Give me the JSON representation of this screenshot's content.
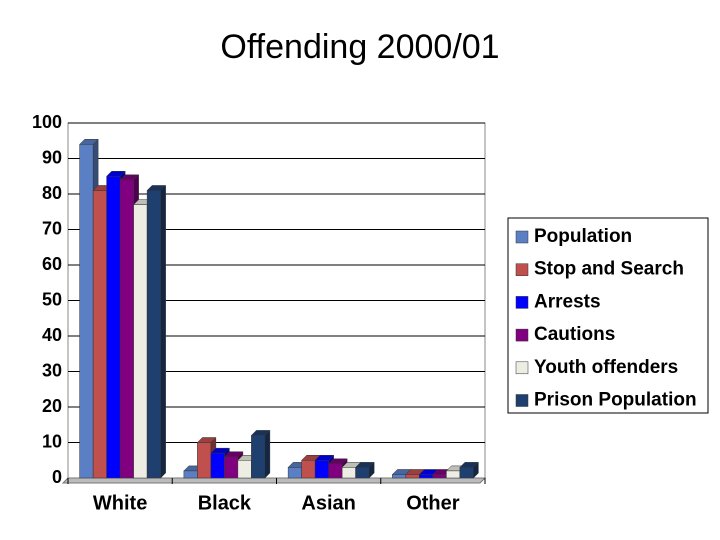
{
  "chart_data": {
    "type": "bar",
    "title": "Offending 2000/01",
    "categories": [
      "White",
      "Black",
      "Asian",
      "Other"
    ],
    "series": [
      {
        "name": "Population",
        "color": "#5a7fc4",
        "values": [
          94,
          2,
          3,
          1
        ]
      },
      {
        "name": "Stop and Search",
        "color": "#c0504d",
        "values": [
          81,
          10,
          5,
          1
        ]
      },
      {
        "name": "Arrests",
        "color": "#0000ff",
        "values": [
          85,
          7,
          5,
          1
        ]
      },
      {
        "name": "Cautions",
        "color": "#800080",
        "values": [
          84,
          6,
          4,
          1
        ]
      },
      {
        "name": "Youth offenders",
        "color": "#ededE4",
        "values": [
          77,
          5,
          3,
          2
        ]
      },
      {
        "name": "Prison Population",
        "color": "#1f3f6f",
        "values": [
          81,
          12,
          3,
          3
        ]
      }
    ],
    "ylim": [
      0,
      100
    ],
    "yticks": [
      0,
      10,
      20,
      30,
      40,
      50,
      60,
      70,
      80,
      90,
      100
    ],
    "grid": true,
    "legend": "right"
  }
}
